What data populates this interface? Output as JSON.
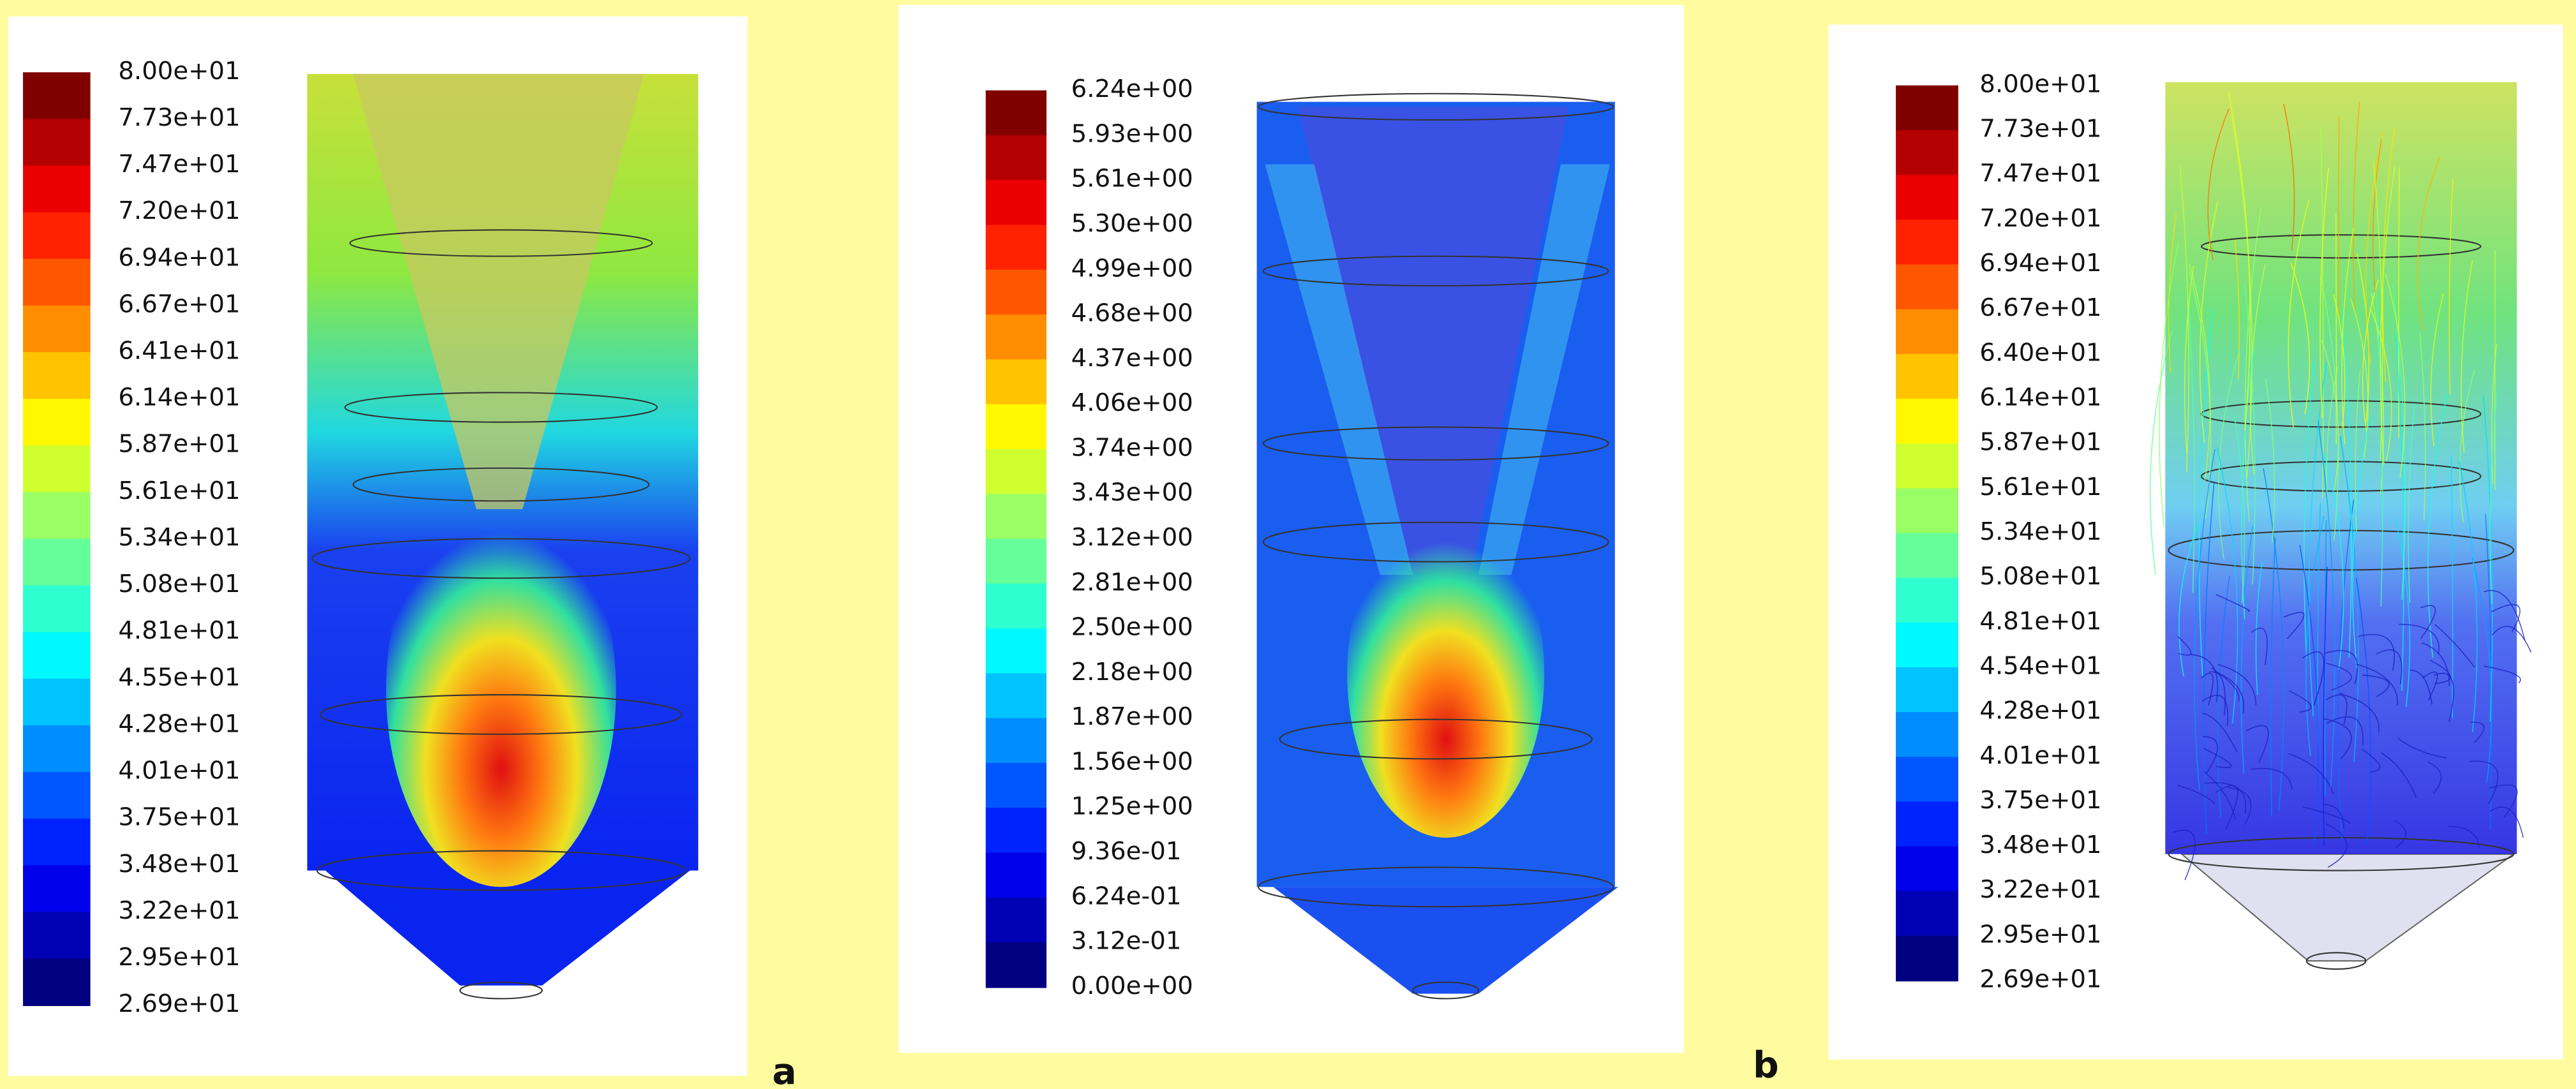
{
  "panels": [
    {
      "colorbar": [
        "8.00e+01",
        "7.73e+01",
        "7.47e+01",
        "7.20e+01",
        "6.94e+01",
        "6.67e+01",
        "6.41e+01",
        "6.14e+01",
        "5.87e+01",
        "5.61e+01",
        "5.34e+01",
        "5.08e+01",
        "4.81e+01",
        "4.55e+01",
        "4.28e+01",
        "4.01e+01",
        "3.75e+01",
        "3.48e+01",
        "3.22e+01",
        "2.95e+01",
        "2.69e+01"
      ]
    },
    {
      "colorbar": [
        "6.24e+00",
        "5.93e+00",
        "5.61e+00",
        "5.30e+00",
        "4.99e+00",
        "4.68e+00",
        "4.37e+00",
        "4.06e+00",
        "3.74e+00",
        "3.43e+00",
        "3.12e+00",
        "2.81e+00",
        "2.50e+00",
        "2.18e+00",
        "1.87e+00",
        "1.56e+00",
        "1.25e+00",
        "9.36e-01",
        "6.24e-01",
        "3.12e-01",
        "0.00e+00"
      ]
    },
    {
      "colorbar": [
        "8.00e+01",
        "7.73e+01",
        "7.47e+01",
        "7.20e+01",
        "6.94e+01",
        "6.67e+01",
        "6.40e+01",
        "6.14e+01",
        "5.87e+01",
        "5.61e+01",
        "5.34e+01",
        "5.08e+01",
        "4.81e+01",
        "4.54e+01",
        "4.28e+01",
        "4.01e+01",
        "3.75e+01",
        "3.48e+01",
        "3.22e+01",
        "2.95e+01",
        "2.69e+01"
      ]
    }
  ],
  "labels": [
    "a",
    "b"
  ]
}
